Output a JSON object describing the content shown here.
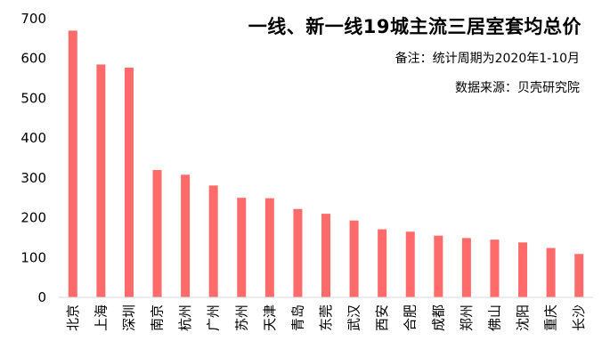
{
  "chart_data": {
    "type": "bar",
    "title": "一线、新一线19城主流三居室套均总价",
    "notes": [
      "备注：统计周期为2020年1-10月",
      "数据来源：贝壳研究院"
    ],
    "categories": [
      "北京",
      "上海",
      "深圳",
      "南京",
      "杭州",
      "广州",
      "苏州",
      "天津",
      "青岛",
      "东莞",
      "武汉",
      "西安",
      "合肥",
      "成都",
      "郑州",
      "佛山",
      "沈阳",
      "重庆",
      "长沙"
    ],
    "values": [
      670,
      585,
      577,
      320,
      308,
      281,
      250,
      249,
      222,
      210,
      193,
      171,
      165,
      155,
      149,
      145,
      138,
      124,
      109
    ],
    "ylim": [
      0,
      700
    ],
    "yticks": [
      0,
      100,
      200,
      300,
      400,
      500,
      600,
      700
    ],
    "color": "#FF6B6B",
    "grid": false,
    "xlabel": "",
    "ylabel": ""
  }
}
